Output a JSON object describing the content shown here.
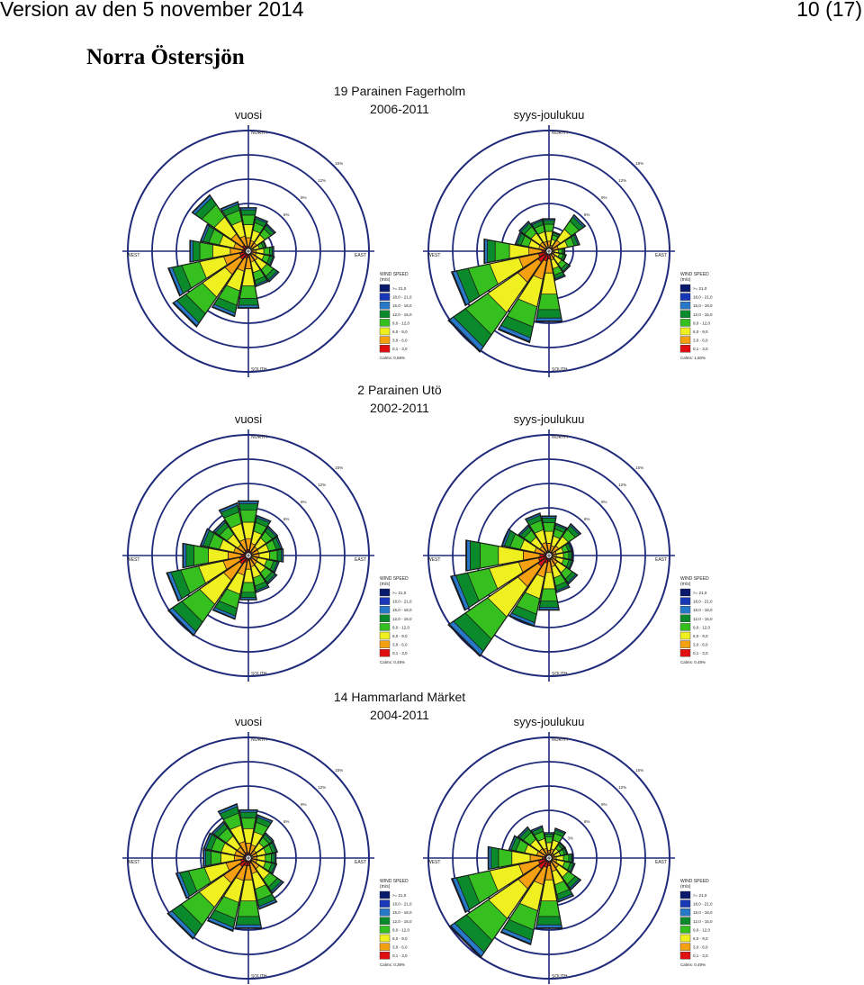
{
  "header": {
    "left": "Version av den 5 november 2014",
    "right": "10 (17)",
    "section": "Norra Östersjön"
  },
  "palette": {
    "ring": "#1f2a7a",
    "axis": "#1f2a7a",
    "outline": "#1a1a1a"
  },
  "speed_legend": {
    "title": "WIND SPEED",
    "unit": "(m/s)",
    "bins": [
      {
        "label": ">= 21,0",
        "color": "#0a1a6b"
      },
      {
        "label": "18,0 - 21,0",
        "color": "#1838b8"
      },
      {
        "label": "15,0 - 18,0",
        "color": "#2878c8"
      },
      {
        "label": "12,0 - 15,0",
        "color": "#0a8a2a"
      },
      {
        "label": "9,0 - 12,0",
        "color": "#35c020"
      },
      {
        "label": "6,0 - 9,0",
        "color": "#f0f020"
      },
      {
        "label": "3,0 - 6,0",
        "color": "#f5a010"
      },
      {
        "label": "0,1 - 3,0",
        "color": "#e01010"
      }
    ]
  },
  "compass": {
    "north": "NORTH",
    "south": "SOUTH",
    "east": "EAST",
    "west": "WEST"
  },
  "ring_labels": [
    "3%",
    "6%",
    "9%",
    "12%",
    "15%"
  ],
  "chart_data": [
    {
      "type": "wind-rose",
      "station": "19 Parainen Fagerholm",
      "years": "2006-2011",
      "label": "vuosi",
      "calms": "Calms: 0,68%",
      "ring_max": 15,
      "directions_deg": [
        0,
        22.5,
        45,
        67.5,
        90,
        112.5,
        135,
        157.5,
        180,
        202.5,
        225,
        247.5,
        270,
        292.5,
        315,
        337.5
      ],
      "totals": [
        5.5,
        4.4,
        4.1,
        2.3,
        3.2,
        3.3,
        4.6,
        4.5,
        7.2,
        8.3,
        11.4,
        10.2,
        7.4,
        6.1,
        8.5,
        6.3
      ]
    },
    {
      "type": "wind-rose",
      "station": "19 Parainen Fagerholm",
      "years": "2006-2011",
      "label": "syys-joulukuu",
      "calms": "Calms: 1,60%",
      "ring_max": 15,
      "directions_deg": [
        0,
        22.5,
        45,
        67.5,
        90,
        112.5,
        135,
        157.5,
        180,
        202.5,
        225,
        247.5,
        270,
        292.5,
        315,
        337.5
      ],
      "totals": [
        4.1,
        2.5,
        5.5,
        3.9,
        2.0,
        2.2,
        3.2,
        3.7,
        8.9,
        11.6,
        15.2,
        12.4,
        8.2,
        4.3,
        4.5,
        4.1
      ]
    },
    {
      "type": "wind-rose",
      "station": "2 Parainen Utö",
      "years": "2002-2011",
      "label": "vuosi",
      "calms": "Calms: 0,49%",
      "ring_max": 15,
      "directions_deg": [
        0,
        22.5,
        45,
        67.5,
        90,
        112.5,
        135,
        157.5,
        180,
        202.5,
        225,
        247.5,
        270,
        292.5,
        315,
        337.5
      ],
      "totals": [
        6.9,
        5.1,
        4.4,
        4.3,
        4.4,
        3.9,
        4.3,
        4.7,
        5.6,
        8.1,
        12.1,
        10.4,
        8.3,
        6.1,
        5.3,
        6.7
      ]
    },
    {
      "type": "wind-rose",
      "station": "2 Parainen Utö",
      "years": "2002-2011",
      "label": "syys-joulukuu",
      "calms": "Calms: 0,48%",
      "ring_max": 15,
      "directions_deg": [
        0,
        22.5,
        45,
        67.5,
        90,
        112.5,
        135,
        157.5,
        180,
        202.5,
        225,
        247.5,
        270,
        292.5,
        315,
        337.5
      ],
      "totals": [
        5.0,
        4.1,
        4.8,
        3.0,
        3.0,
        3.1,
        4.3,
        4.7,
        6.9,
        9.0,
        15.2,
        12.5,
        10.5,
        6.0,
        4.6,
        5.4
      ]
    },
    {
      "type": "wind-rose",
      "station": "14 Hammarland Märket",
      "years": "2004-2011",
      "label": "vuosi",
      "calms": "Calms: 0,39%",
      "ring_max": 15,
      "directions_deg": [
        0,
        22.5,
        45,
        67.5,
        90,
        112.5,
        135,
        157.5,
        180,
        202.5,
        225,
        247.5,
        270,
        292.5,
        315,
        337.5
      ],
      "totals": [
        6.1,
        5.5,
        3.8,
        3.7,
        3.5,
        3.6,
        5.3,
        6.5,
        8.9,
        9.3,
        12.2,
        9.2,
        5.7,
        5.7,
        5.5,
        6.9
      ]
    },
    {
      "type": "wind-rose",
      "station": "14 Hammarland Märket",
      "years": "2004-2011",
      "label": "syys-joulukuu",
      "calms": "Calms: 0,49%",
      "ring_max": 15,
      "directions_deg": [
        0,
        22.5,
        45,
        67.5,
        90,
        112.5,
        135,
        157.5,
        180,
        202.5,
        225,
        247.5,
        270,
        292.5,
        315,
        337.5
      ],
      "totals": [
        3.2,
        3.8,
        2.4,
        2.4,
        3.0,
        3.3,
        4.8,
        5.6,
        8.9,
        11.0,
        15.0,
        12.4,
        7.7,
        5.1,
        4.7,
        4.1
      ]
    }
  ]
}
